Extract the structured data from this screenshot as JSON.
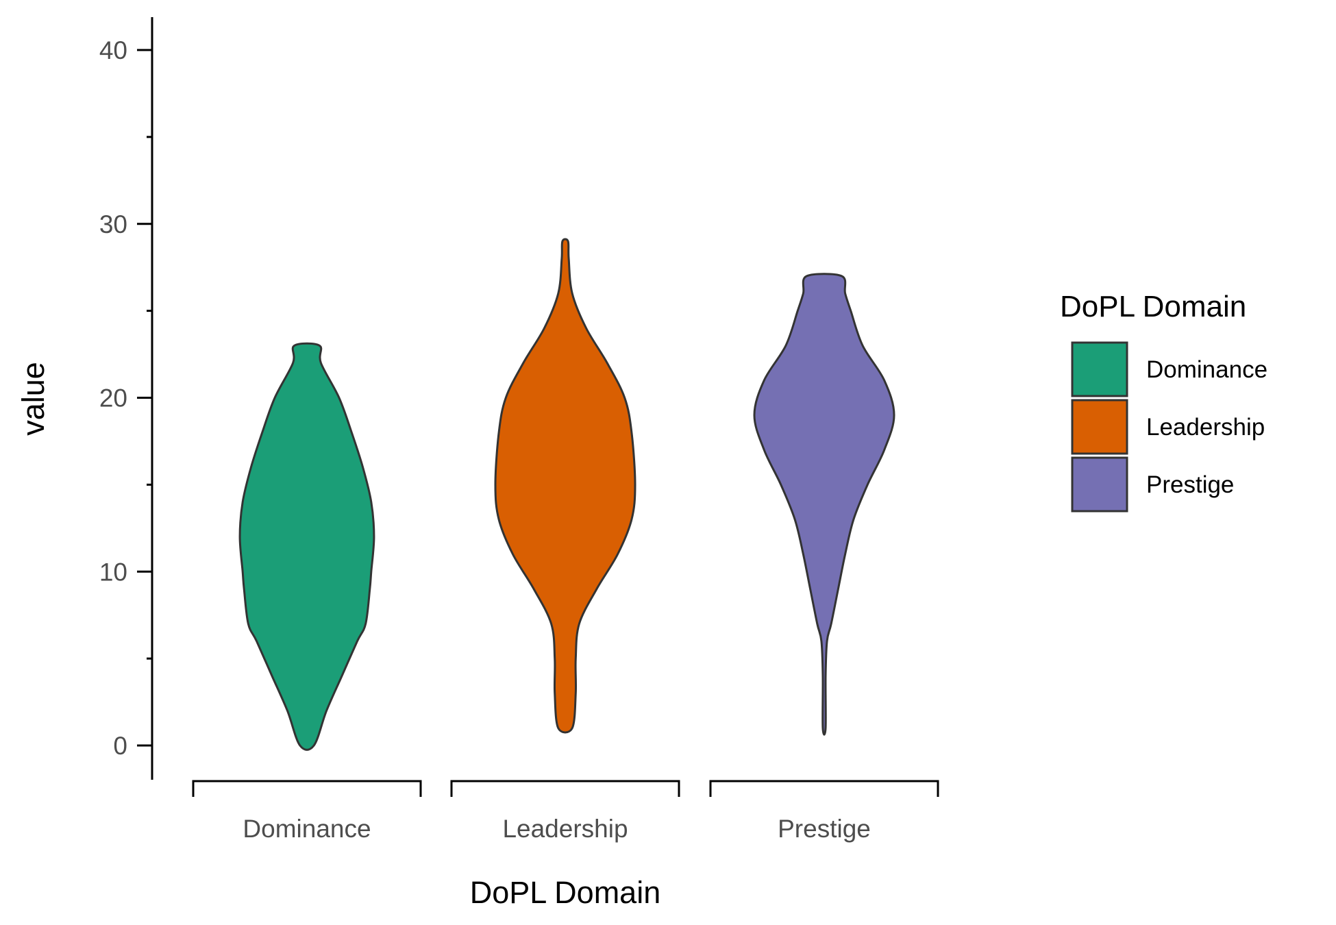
{
  "chart_data": {
    "type": "violin",
    "xlabel": "DoPL Domain",
    "ylabel": "value",
    "ylim": [
      -2,
      42
    ],
    "yticks": [
      0,
      10,
      20,
      30,
      40
    ],
    "yminor_ticks": [
      5,
      15,
      25,
      35
    ],
    "categories": [
      "Dominance",
      "Leadership",
      "Prestige"
    ],
    "legend": {
      "title": "DoPL Domain",
      "position": "right"
    },
    "colors": {
      "Dominance": "#1b9e77",
      "Leadership": "#d95f02",
      "Prestige": "#7570b3",
      "outline": "#333333",
      "axis": "#000000"
    },
    "series": [
      {
        "name": "Dominance",
        "min": 0,
        "max": 23,
        "max_half_width": 1.0,
        "profile": [
          [
            0,
            0.1
          ],
          [
            2,
            0.28
          ],
          [
            4,
            0.5
          ],
          [
            6,
            0.72
          ],
          [
            7,
            0.84
          ],
          [
            9,
            0.9
          ],
          [
            10,
            0.92
          ],
          [
            12,
            0.96
          ],
          [
            14,
            0.92
          ],
          [
            16,
            0.8
          ],
          [
            18,
            0.64
          ],
          [
            20,
            0.46
          ],
          [
            22,
            0.2
          ],
          [
            23,
            0.18
          ]
        ]
      },
      {
        "name": "Leadership",
        "min": 1,
        "max": 29,
        "max_half_width": 1.0,
        "profile": [
          [
            1,
            0.1
          ],
          [
            3,
            0.15
          ],
          [
            5,
            0.15
          ],
          [
            7,
            0.2
          ],
          [
            9,
            0.45
          ],
          [
            11,
            0.75
          ],
          [
            13,
            0.95
          ],
          [
            15,
            1.0
          ],
          [
            18,
            0.95
          ],
          [
            20,
            0.85
          ],
          [
            22,
            0.6
          ],
          [
            24,
            0.3
          ],
          [
            26,
            0.1
          ],
          [
            28,
            0.05
          ],
          [
            29,
            0.04
          ]
        ]
      },
      {
        "name": "Prestige",
        "min": 1,
        "max": 27,
        "max_half_width": 1.0,
        "profile": [
          [
            1,
            0.02
          ],
          [
            4,
            0.02
          ],
          [
            6,
            0.04
          ],
          [
            7,
            0.1
          ],
          [
            9,
            0.2
          ],
          [
            11,
            0.3
          ],
          [
            13,
            0.42
          ],
          [
            15,
            0.62
          ],
          [
            17,
            0.86
          ],
          [
            19,
            1.0
          ],
          [
            21,
            0.86
          ],
          [
            23,
            0.55
          ],
          [
            25,
            0.38
          ],
          [
            26,
            0.3
          ],
          [
            27,
            0.25
          ]
        ]
      }
    ]
  }
}
